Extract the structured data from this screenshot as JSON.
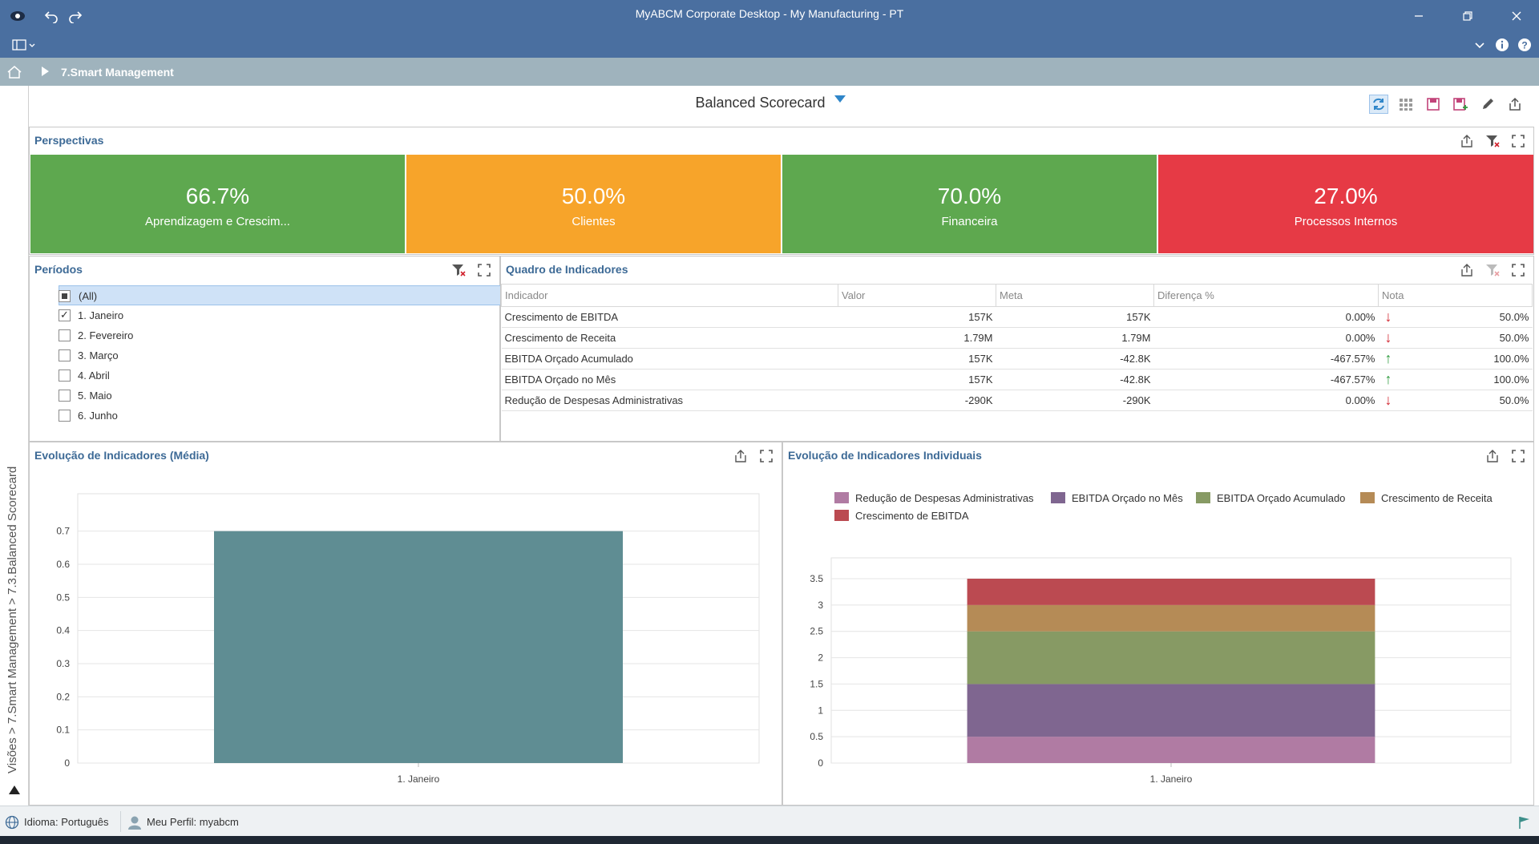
{
  "window": {
    "title": "MyABCM Corporate Desktop - My Manufacturing - PT"
  },
  "nav": {
    "breadcrumb": "7.Smart Management"
  },
  "side": {
    "path": "Visões > 7.Smart Management > 7.3.Balanced Scorecard"
  },
  "dashboard": {
    "title": "Balanced Scorecard"
  },
  "perspectives": {
    "title": "Perspectivas",
    "cards": [
      {
        "value": "66.7%",
        "label": "Aprendizagem e Crescim...",
        "color": "#5ea84f"
      },
      {
        "value": "50.0%",
        "label": "Clientes",
        "color": "#f7a42a"
      },
      {
        "value": "70.0%",
        "label": "Financeira",
        "color": "#5ea84f"
      },
      {
        "value": "27.0%",
        "label": "Processos Internos",
        "color": "#e63a45"
      }
    ]
  },
  "periods": {
    "title": "Períodos",
    "items": [
      {
        "label": "(All)",
        "state": "indeterminate"
      },
      {
        "label": "1. Janeiro",
        "state": "checked"
      },
      {
        "label": "2. Fevereiro",
        "state": "unchecked"
      },
      {
        "label": "3. Março",
        "state": "unchecked"
      },
      {
        "label": "4. Abril",
        "state": "unchecked"
      },
      {
        "label": "5. Maio",
        "state": "unchecked"
      },
      {
        "label": "6. Junho",
        "state": "unchecked"
      }
    ]
  },
  "indicators": {
    "title": "Quadro de Indicadores",
    "columns": [
      "Indicador",
      "Valor",
      "Meta",
      "Diferença %",
      "Nota"
    ],
    "rows": [
      {
        "name": "Crescimento de EBITDA",
        "valor": "157K",
        "meta": "157K",
        "diff": "0.00%",
        "trend": "down",
        "nota": "50.0%"
      },
      {
        "name": "Crescimento de Receita",
        "valor": "1.79M",
        "meta": "1.79M",
        "diff": "0.00%",
        "trend": "down",
        "nota": "50.0%"
      },
      {
        "name": "EBITDA Orçado Acumulado",
        "valor": "157K",
        "meta": "-42.8K",
        "diff": "-467.57%",
        "trend": "up",
        "nota": "100.0%"
      },
      {
        "name": "EBITDA Orçado no Mês",
        "valor": "157K",
        "meta": "-42.8K",
        "diff": "-467.57%",
        "trend": "up",
        "nota": "100.0%"
      },
      {
        "name": "Redução de Despesas Administrativas",
        "valor": "-290K",
        "meta": "-290K",
        "diff": "0.00%",
        "trend": "down",
        "nota": "50.0%"
      }
    ]
  },
  "avg_chart": {
    "title": "Evolução de Indicadores (Média)"
  },
  "ind_chart": {
    "title": "Evolução de Indicadores Individuais"
  },
  "status": {
    "language": "Idioma: Português",
    "profile": "Meu Perfil: myabcm"
  },
  "chart_data": [
    {
      "type": "bar",
      "categories": [
        "1. Janeiro"
      ],
      "values": [
        0.7
      ],
      "ylim": [
        0,
        0.75
      ],
      "yticks": [
        0,
        0.1,
        0.2,
        0.3,
        0.4,
        0.5,
        0.6,
        0.7
      ],
      "grid": true,
      "color": "#5f8d93"
    },
    {
      "type": "bar",
      "stacked": true,
      "categories": [
        "1. Janeiro"
      ],
      "ylim": [
        0,
        3.5
      ],
      "yticks": [
        0,
        0.5,
        1,
        1.5,
        2,
        2.5,
        3,
        3.5
      ],
      "grid": true,
      "legend": "top",
      "series": [
        {
          "name": "Redução de Despesas Administrativas",
          "values": [
            0.5
          ],
          "color": "#b07ba3"
        },
        {
          "name": "EBITDA Orçado no Mês",
          "values": [
            1.0
          ],
          "color": "#7f6690"
        },
        {
          "name": "EBITDA Orçado Acumulado",
          "values": [
            1.0
          ],
          "color": "#879a64"
        },
        {
          "name": "Crescimento de Receita",
          "values": [
            0.5
          ],
          "color": "#b58b56"
        },
        {
          "name": "Crescimento de EBITDA",
          "values": [
            0.5
          ],
          "color": "#bb4a51"
        }
      ]
    }
  ]
}
